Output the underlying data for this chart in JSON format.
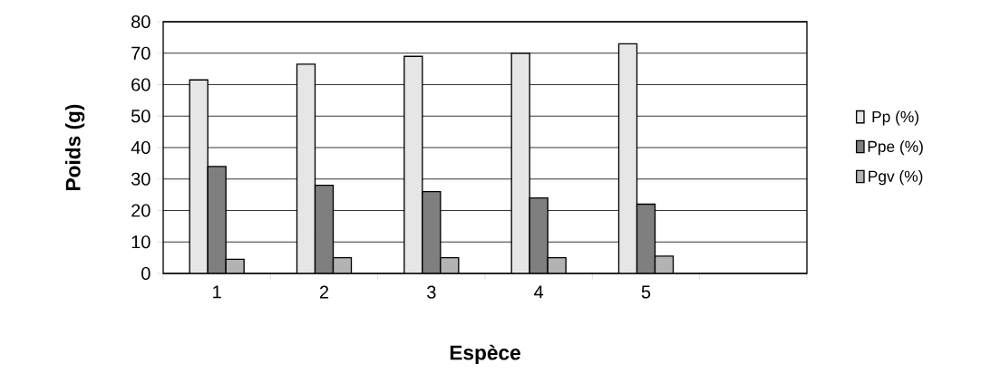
{
  "chart_data": {
    "type": "bar",
    "xlabel": "Espèce",
    "ylabel": "Poids (g)",
    "categories": [
      "1",
      "2",
      "3",
      "4",
      "5",
      null
    ],
    "series": [
      {
        "name": "Pp (%)",
        "color": "#e6e6e6",
        "values": [
          61.5,
          66.5,
          69,
          70,
          73,
          null
        ]
      },
      {
        "name": "Ppe (%)",
        "color": "#7f7f7f",
        "values": [
          34,
          28,
          26,
          24,
          22,
          null
        ]
      },
      {
        "name": "Pgv (%)",
        "color": "#b3b3b3",
        "values": [
          4.5,
          5,
          5,
          5,
          5.5,
          null
        ]
      }
    ],
    "ylim": [
      0,
      80
    ],
    "yticks": [
      0,
      10,
      20,
      30,
      40,
      50,
      60,
      70,
      80
    ],
    "grid": "y",
    "legend": "right"
  }
}
